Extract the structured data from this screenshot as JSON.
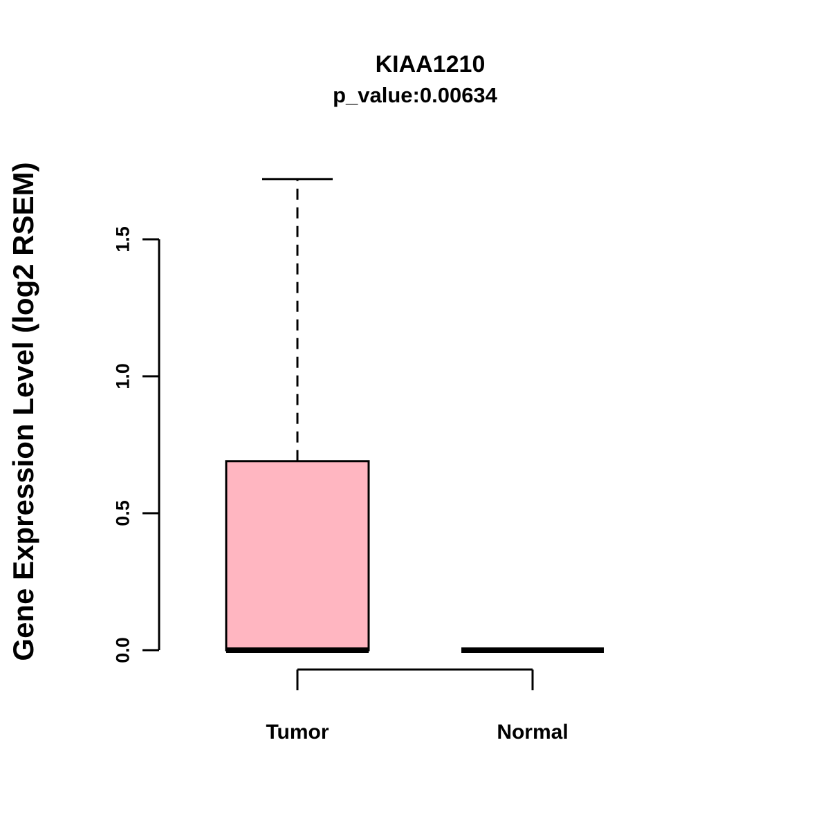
{
  "chart_data": {
    "type": "boxplot",
    "title": "KIAA1210",
    "subtitle": "p_value:0.00634",
    "ylabel": "Gene Expression Level (log2 RSEM)",
    "xlabel": "",
    "categories": [
      "Tumor",
      "Normal"
    ],
    "yticks": [
      0.0,
      0.5,
      1.0,
      1.5
    ],
    "ytick_labels": [
      "0.0",
      "0.5",
      "1.0",
      "1.5"
    ],
    "ylim": [
      0.0,
      1.72
    ],
    "grid": false,
    "legend": "none",
    "series": [
      {
        "label": "Tumor",
        "lower_whisker": 0.0,
        "q1": 0.0,
        "median": 0.0,
        "q3": 0.69,
        "upper_whisker": 1.72,
        "fill": "#FFB6C1"
      },
      {
        "label": "Normal",
        "lower_whisker": 0.0,
        "q1": 0.0,
        "median": 0.0,
        "q3": 0.0,
        "upper_whisker": 0.0,
        "fill": "#FFB6C1"
      }
    ],
    "colors": {
      "box_fill": "#FFB6C1",
      "stroke": "#000000",
      "background": "#FFFFFF"
    }
  }
}
